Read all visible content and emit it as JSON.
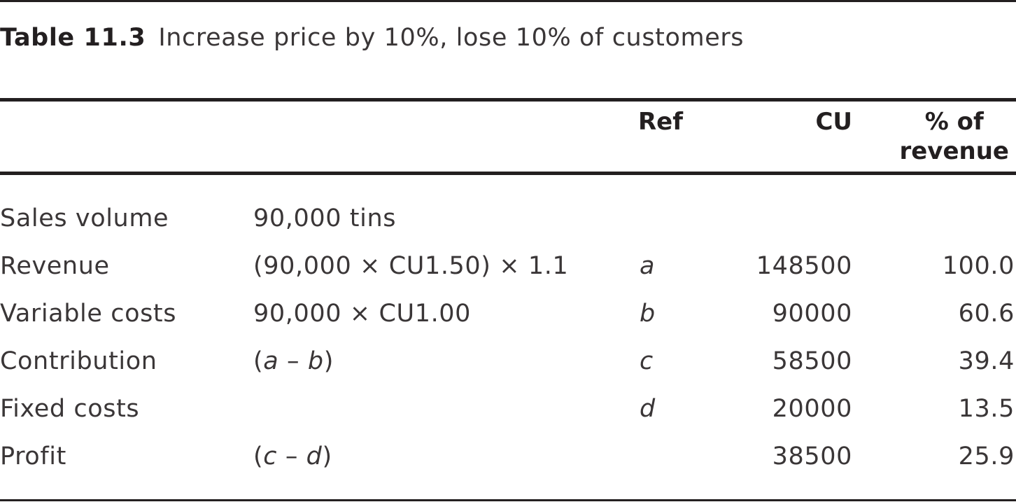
{
  "caption": {
    "label": "Table 11.3",
    "text": "Increase price by 10%, lose 10% of customers"
  },
  "header": {
    "ref": "Ref",
    "cu": "CU",
    "pct_line1": "% of",
    "pct_line2": "revenue"
  },
  "rows": [
    {
      "label": "Sales volume",
      "formula": "90,000 tins",
      "ref": "",
      "cu": "",
      "pct": ""
    },
    {
      "label": "Revenue",
      "formula": "(90,000 × CU1.50) × 1.1",
      "ref": "a",
      "cu": "148500",
      "pct": "100.0"
    },
    {
      "label": "Variable costs",
      "formula": "90,000 × CU1.00",
      "ref": "b",
      "cu": "90000",
      "pct": "60.6"
    },
    {
      "label": "Contribution",
      "formula_parts": {
        "open": "(",
        "v1": "a",
        "op": " – ",
        "v2": "b",
        "close": ")"
      },
      "ref": "c",
      "cu": "58500",
      "pct": "39.4"
    },
    {
      "label": "Fixed costs",
      "formula": "",
      "ref": "d",
      "cu": "20000",
      "pct": "13.5"
    },
    {
      "label": "Profit",
      "formula_parts": {
        "open": "(",
        "v1": "c",
        "op": " – ",
        "v2": "d",
        "close": ")"
      },
      "ref": "",
      "cu": "38500",
      "pct": "25.9"
    }
  ]
}
